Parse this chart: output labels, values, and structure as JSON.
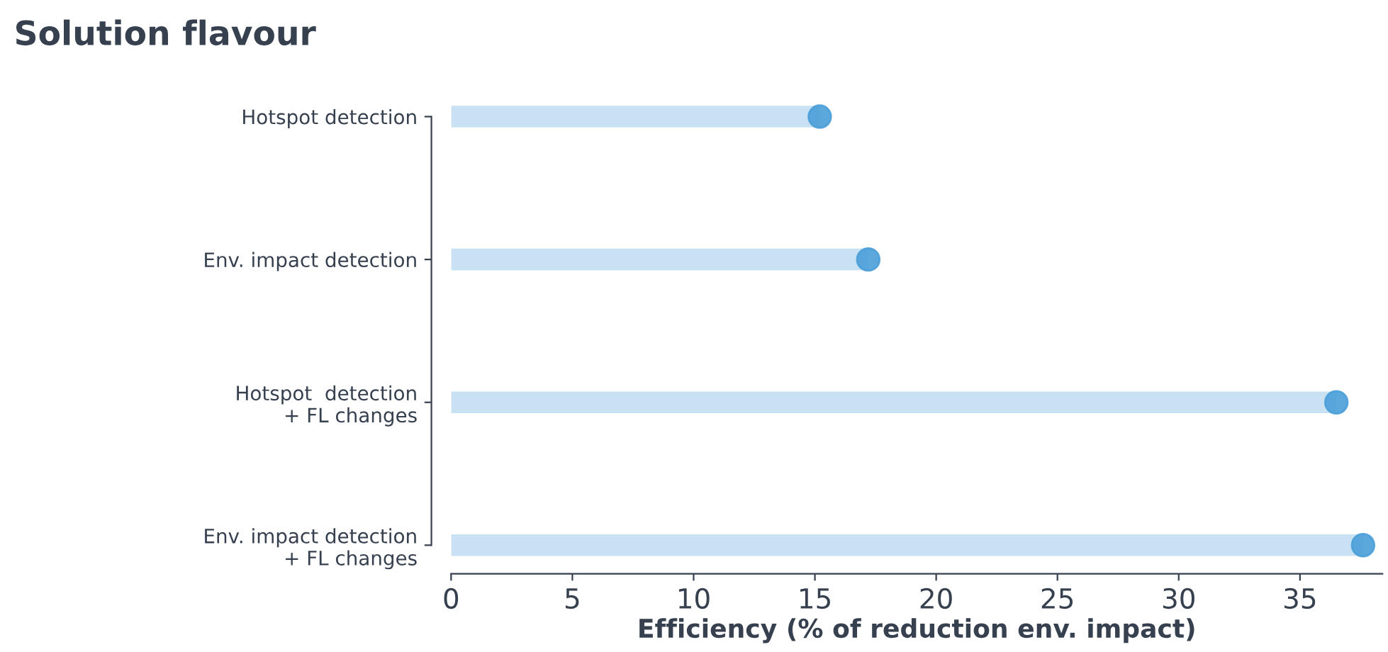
{
  "chart_data": {
    "type": "lollipop",
    "orientation": "horizontal",
    "title": "Solution flavour",
    "xlabel": "Efficiency (% of reduction env. impact)",
    "categories": [
      "Hotspot detection",
      "Env. impact detection",
      "Hotspot  detection\n+ FL changes",
      "Env. impact detection\n+ FL changes"
    ],
    "series": [
      {
        "color": "#4a9fd8",
        "values": [
          15.2,
          17.2,
          36.5,
          37.6
        ]
      }
    ],
    "xlim": [
      0,
      38.4
    ],
    "xticks": [
      0,
      5,
      10,
      15,
      20,
      25,
      30,
      35
    ],
    "grid": false,
    "legend": false
  }
}
